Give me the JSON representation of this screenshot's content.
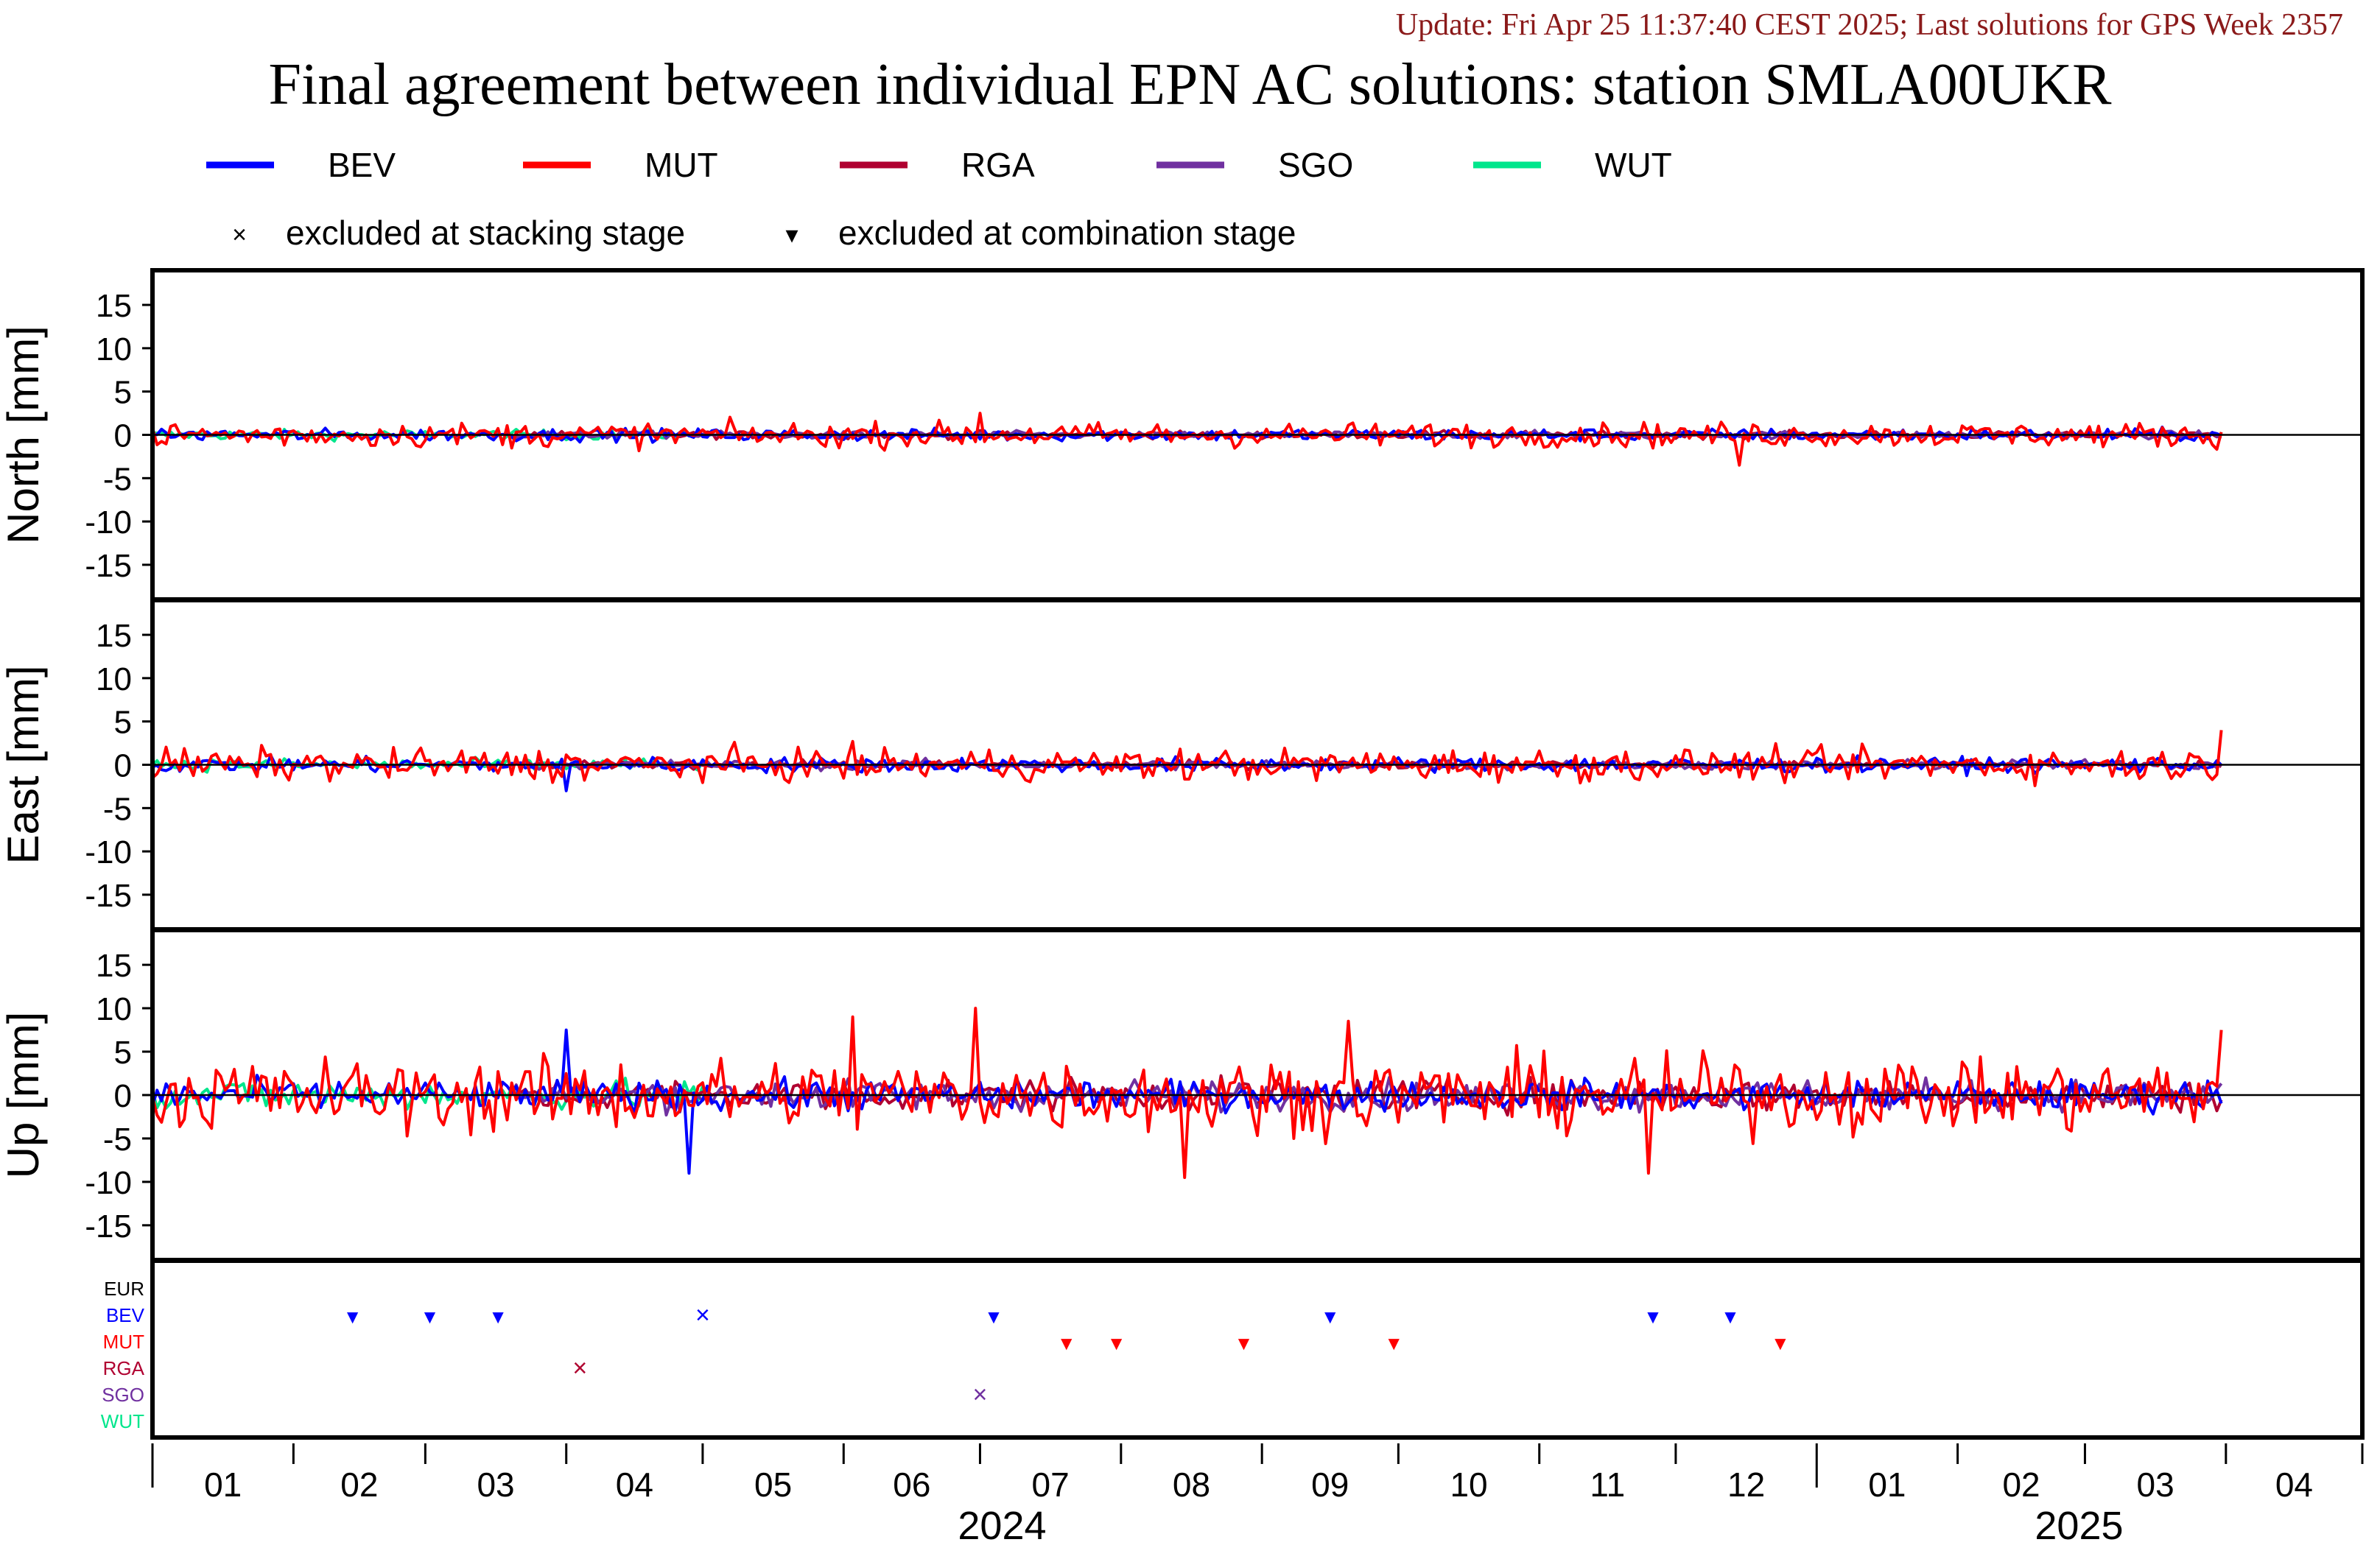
{
  "header": {
    "update": "Update: Fri Apr 25 11:37:40 CEST 2025; Last solutions for GPS Week 2357",
    "title": "Final agreement between individual EPN AC solutions: station SMLA00UKR"
  },
  "legend": {
    "series": [
      {
        "name": "BEV",
        "color": "#0000ff"
      },
      {
        "name": "MUT",
        "color": "#ff0000"
      },
      {
        "name": "RGA",
        "color": "#b00030"
      },
      {
        "name": "SGO",
        "color": "#7030a0"
      },
      {
        "name": "WUT",
        "color": "#00e68c"
      }
    ],
    "markers": [
      {
        "symbol": "×",
        "label": "excluded at stacking stage"
      },
      {
        "symbol": "▾",
        "label": "excluded at combination stage"
      }
    ]
  },
  "chart_data": {
    "type": "line",
    "x_unit": "month",
    "x_range": [
      "2024-01-01",
      "2025-04-30"
    ],
    "panels": [
      {
        "ylabel": "North [mm]",
        "ylim": [
          -19,
          19
        ],
        "yticks": [
          15,
          10,
          5,
          0,
          -5,
          -10,
          -15
        ],
        "amplitude": {
          "BEV": 0.5,
          "MUT": 1.0,
          "RGA": 0.3,
          "SGO": 0.3,
          "WUT": 0.4
        }
      },
      {
        "ylabel": "East [mm]",
        "ylim": [
          -19,
          19
        ],
        "yticks": [
          15,
          10,
          5,
          0,
          -5,
          -10,
          -15
        ],
        "amplitude": {
          "BEV": 0.6,
          "MUT": 1.3,
          "RGA": 0.3,
          "SGO": 0.4,
          "WUT": 0.5
        }
      },
      {
        "ylabel": "Up [mm]",
        "ylim": [
          -19,
          19
        ],
        "yticks": [
          15,
          10,
          5,
          0,
          -5,
          -10,
          -15
        ],
        "amplitude": {
          "BEV": 1.2,
          "MUT": 3.0,
          "RGA": 1.3,
          "SGO": 1.2,
          "WUT": 1.2
        }
      }
    ],
    "series_coverage": {
      "BEV": [
        "2024-01-01",
        "2025-03-31"
      ],
      "MUT": [
        "2024-01-01",
        "2025-03-31"
      ],
      "RGA": [
        "2024-03-20",
        "2025-03-31"
      ],
      "SGO": [
        "2024-03-20",
        "2025-03-31"
      ],
      "WUT": [
        "2024-01-01",
        "2024-05-01"
      ]
    },
    "spikes": [
      {
        "panel": "Up",
        "series": "BEV",
        "date": "2024-04-01",
        "value": 7.5
      },
      {
        "panel": "Up",
        "series": "BEV",
        "date": "2024-04-28",
        "value": -9.0
      },
      {
        "panel": "Up",
        "series": "MUT",
        "date": "2024-06-30",
        "value": 10.0
      },
      {
        "panel": "Up",
        "series": "MUT",
        "date": "2024-08-15",
        "value": -9.5
      },
      {
        "panel": "Up",
        "series": "MUT",
        "date": "2024-09-20",
        "value": 8.5
      },
      {
        "panel": "Up",
        "series": "MUT",
        "date": "2024-11-25",
        "value": -9.0
      },
      {
        "panel": "Up",
        "series": "MUT",
        "date": "2024-06-03",
        "value": 9.0
      },
      {
        "panel": "Up",
        "series": "MUT",
        "date": "2025-03-31",
        "value": 7.5
      },
      {
        "panel": "East",
        "series": "MUT",
        "date": "2025-03-31",
        "value": 4.0
      },
      {
        "panel": "East",
        "series": "BEV",
        "date": "2024-04-01",
        "value": -3.0
      },
      {
        "panel": "North",
        "series": "MUT",
        "date": "2024-12-15",
        "value": -3.5
      },
      {
        "panel": "North",
        "series": "MUT",
        "date": "2024-07-01",
        "value": 2.5
      }
    ],
    "exclusion_rows": [
      "EUR",
      "BEV",
      "MUT",
      "RGA",
      "SGO",
      "WUT"
    ],
    "exclusions": [
      {
        "ac": "BEV",
        "date": "2024-02-14",
        "stage": "combination"
      },
      {
        "ac": "BEV",
        "date": "2024-03-02",
        "stage": "combination"
      },
      {
        "ac": "BEV",
        "date": "2024-03-17",
        "stage": "combination"
      },
      {
        "ac": "BEV",
        "date": "2024-05-01",
        "stage": "stacking"
      },
      {
        "ac": "BEV",
        "date": "2024-07-04",
        "stage": "combination"
      },
      {
        "ac": "BEV",
        "date": "2024-09-16",
        "stage": "combination"
      },
      {
        "ac": "BEV",
        "date": "2024-11-26",
        "stage": "combination"
      },
      {
        "ac": "BEV",
        "date": "2024-12-13",
        "stage": "combination"
      },
      {
        "ac": "MUT",
        "date": "2024-07-20",
        "stage": "combination"
      },
      {
        "ac": "MUT",
        "date": "2024-07-31",
        "stage": "combination"
      },
      {
        "ac": "MUT",
        "date": "2024-08-28",
        "stage": "combination"
      },
      {
        "ac": "MUT",
        "date": "2024-09-30",
        "stage": "combination"
      },
      {
        "ac": "MUT",
        "date": "2024-12-24",
        "stage": "combination"
      },
      {
        "ac": "RGA",
        "date": "2024-04-04",
        "stage": "stacking"
      },
      {
        "ac": "SGO",
        "date": "2024-07-01",
        "stage": "stacking"
      }
    ],
    "x_tick_labels": [
      "01",
      "02",
      "03",
      "04",
      "05",
      "06",
      "07",
      "08",
      "09",
      "10",
      "11",
      "12",
      "01",
      "02",
      "03",
      "04"
    ],
    "year_labels": [
      {
        "label": "2024",
        "month_index": 6
      },
      {
        "label": "2025",
        "month_index": 14
      }
    ]
  }
}
